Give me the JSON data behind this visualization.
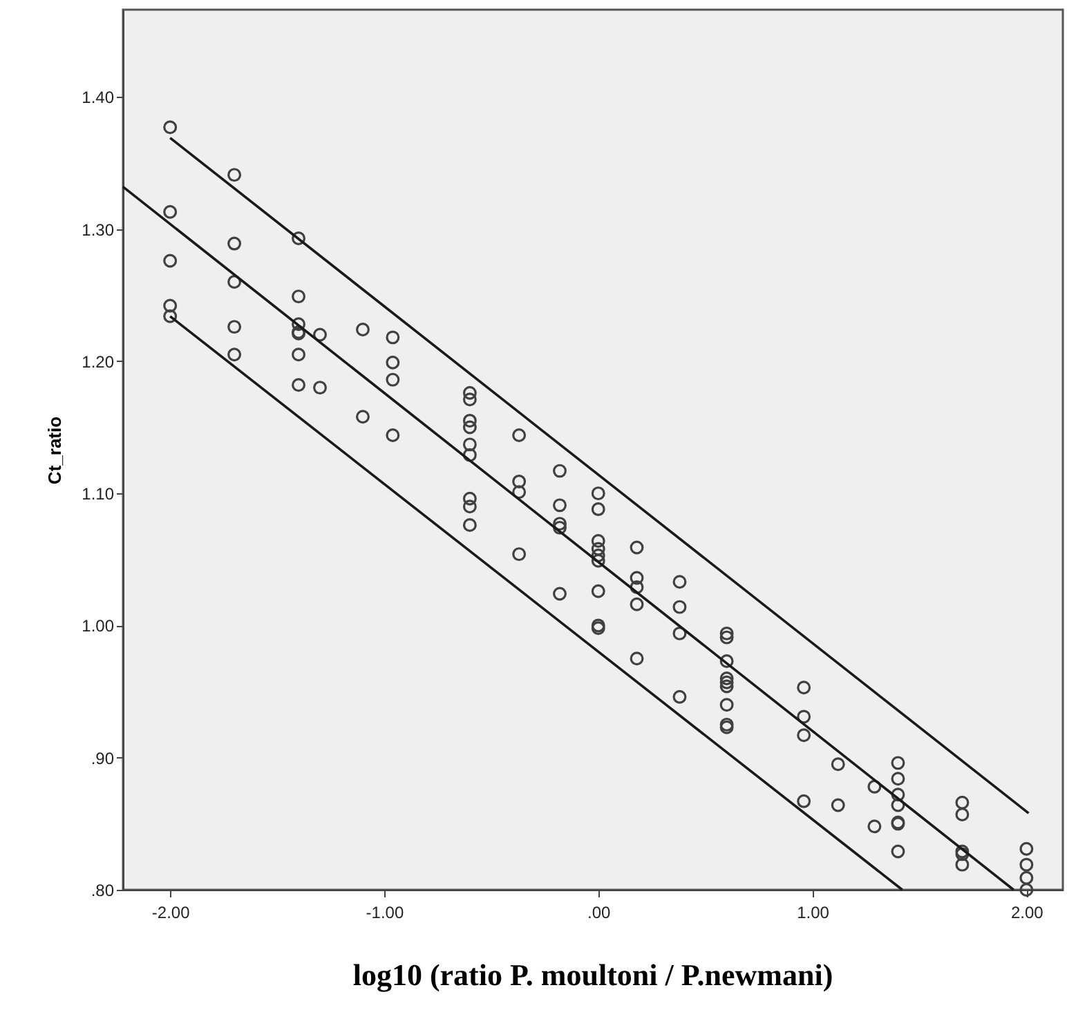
{
  "chart_data": {
    "type": "scatter",
    "xlabel": "log10 (ratio P. moultoni / P.newmani)",
    "ylabel": "Ct_ratio",
    "xlim": [
      -2.22,
      2.17
    ],
    "ylim": [
      0.8,
      1.466
    ],
    "xticks": [
      {
        "value": -2,
        "label": "-2.00"
      },
      {
        "value": -1,
        "label": "-1.00"
      },
      {
        "value": 0,
        "label": ".00"
      },
      {
        "value": 1,
        "label": "1.00"
      },
      {
        "value": 2,
        "label": "2.00"
      }
    ],
    "yticks": [
      {
        "value": 0.8,
        "label": ".80"
      },
      {
        "value": 0.9,
        "label": ".90"
      },
      {
        "value": 1.0,
        "label": "1.00"
      },
      {
        "value": 1.1,
        "label": "1.10"
      },
      {
        "value": 1.2,
        "label": "1.20"
      },
      {
        "value": 1.3,
        "label": "1.30"
      },
      {
        "value": 1.4,
        "label": "1.40"
      }
    ],
    "grid": false,
    "series": [
      {
        "marker": "circle",
        "color": "#404040",
        "x": [
          -2,
          -2,
          -2,
          -2,
          -2,
          -1.7,
          -1.7,
          -1.7,
          -1.7,
          -1.7,
          -1.4,
          -1.4,
          -1.4,
          -1.4,
          -1.4,
          -1.4,
          -1.4,
          -1.3,
          -1.3,
          -1.1,
          -1.1,
          -0.96,
          -0.96,
          -0.96,
          -0.96,
          -0.6,
          -0.6,
          -0.6,
          -0.6,
          -0.6,
          -0.6,
          -0.6,
          -0.6,
          -0.6,
          -0.37,
          -0.37,
          -0.37,
          -0.37,
          -0.18,
          -0.18,
          -0.18,
          -0.18,
          -0.18,
          0,
          0,
          0,
          0,
          0,
          0,
          0,
          0,
          0,
          0.18,
          0.18,
          0.18,
          0.18,
          0.18,
          0.38,
          0.38,
          0.38,
          0.38,
          0.6,
          0.6,
          0.6,
          0.6,
          0.6,
          0.6,
          0.6,
          0.6,
          0.6,
          0.96,
          0.96,
          0.96,
          0.96,
          1.12,
          1.12,
          1.29,
          1.29,
          1.4,
          1.4,
          1.4,
          1.4,
          1.4,
          1.4,
          1.4,
          1.7,
          1.7,
          1.7,
          1.7,
          1.7,
          2,
          2,
          2,
          2
        ],
        "values": [
          1.377,
          1.313,
          1.276,
          1.242,
          1.234,
          1.341,
          1.289,
          1.26,
          1.226,
          1.205,
          1.293,
          1.249,
          1.228,
          1.222,
          1.221,
          1.205,
          1.182,
          1.22,
          1.18,
          1.224,
          1.158,
          1.218,
          1.199,
          1.186,
          1.144,
          1.176,
          1.171,
          1.155,
          1.15,
          1.137,
          1.129,
          1.096,
          1.09,
          1.076,
          1.144,
          1.109,
          1.101,
          1.054,
          1.117,
          1.091,
          1.077,
          1.074,
          1.024,
          1.1,
          1.088,
          1.064,
          1.058,
          1.053,
          1.049,
          1.026,
          1.0,
          0.998,
          1.059,
          1.036,
          1.029,
          1.016,
          0.975,
          1.033,
          1.014,
          0.994,
          0.946,
          0.994,
          0.991,
          0.973,
          0.96,
          0.957,
          0.954,
          0.94,
          0.925,
          0.923,
          0.953,
          0.931,
          0.917,
          0.867,
          0.895,
          0.864,
          0.878,
          0.848,
          0.896,
          0.884,
          0.872,
          0.864,
          0.851,
          0.85,
          0.829,
          0.866,
          0.857,
          0.829,
          0.827,
          0.819,
          0.831,
          0.819,
          0.809,
          0.8
        ]
      },
      {
        "type": "line",
        "color": "#1a1a1a",
        "x": [
          -2.0,
          2.01
        ],
        "values": [
          1.369,
          0.858
        ]
      },
      {
        "type": "line",
        "color": "#1a1a1a",
        "x": [
          -2.22,
          1.94
        ],
        "values": [
          1.332,
          0.8
        ]
      },
      {
        "type": "line",
        "color": "#1a1a1a",
        "x": [
          -2.0,
          1.42
        ],
        "values": [
          1.234,
          0.8
        ]
      }
    ]
  }
}
